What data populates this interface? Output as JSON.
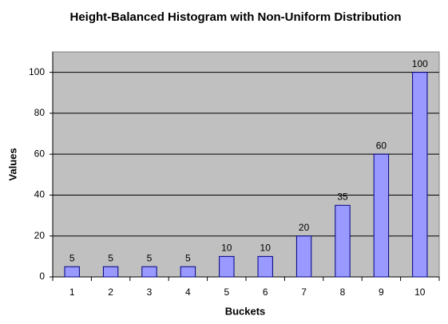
{
  "chart_data": {
    "type": "bar",
    "title": "Height-Balanced Histogram with Non-Uniform Distribution",
    "x_label": "Buckets",
    "y_label": "Values",
    "categories": [
      "1",
      "2",
      "3",
      "4",
      "5",
      "6",
      "7",
      "8",
      "9",
      "10"
    ],
    "values": [
      5,
      5,
      5,
      5,
      10,
      10,
      20,
      35,
      60,
      100
    ],
    "color": "#9999ff",
    "ylim": [
      0,
      110
    ],
    "yticks": [
      0,
      20,
      40,
      60,
      80,
      100
    ],
    "grid": true
  }
}
